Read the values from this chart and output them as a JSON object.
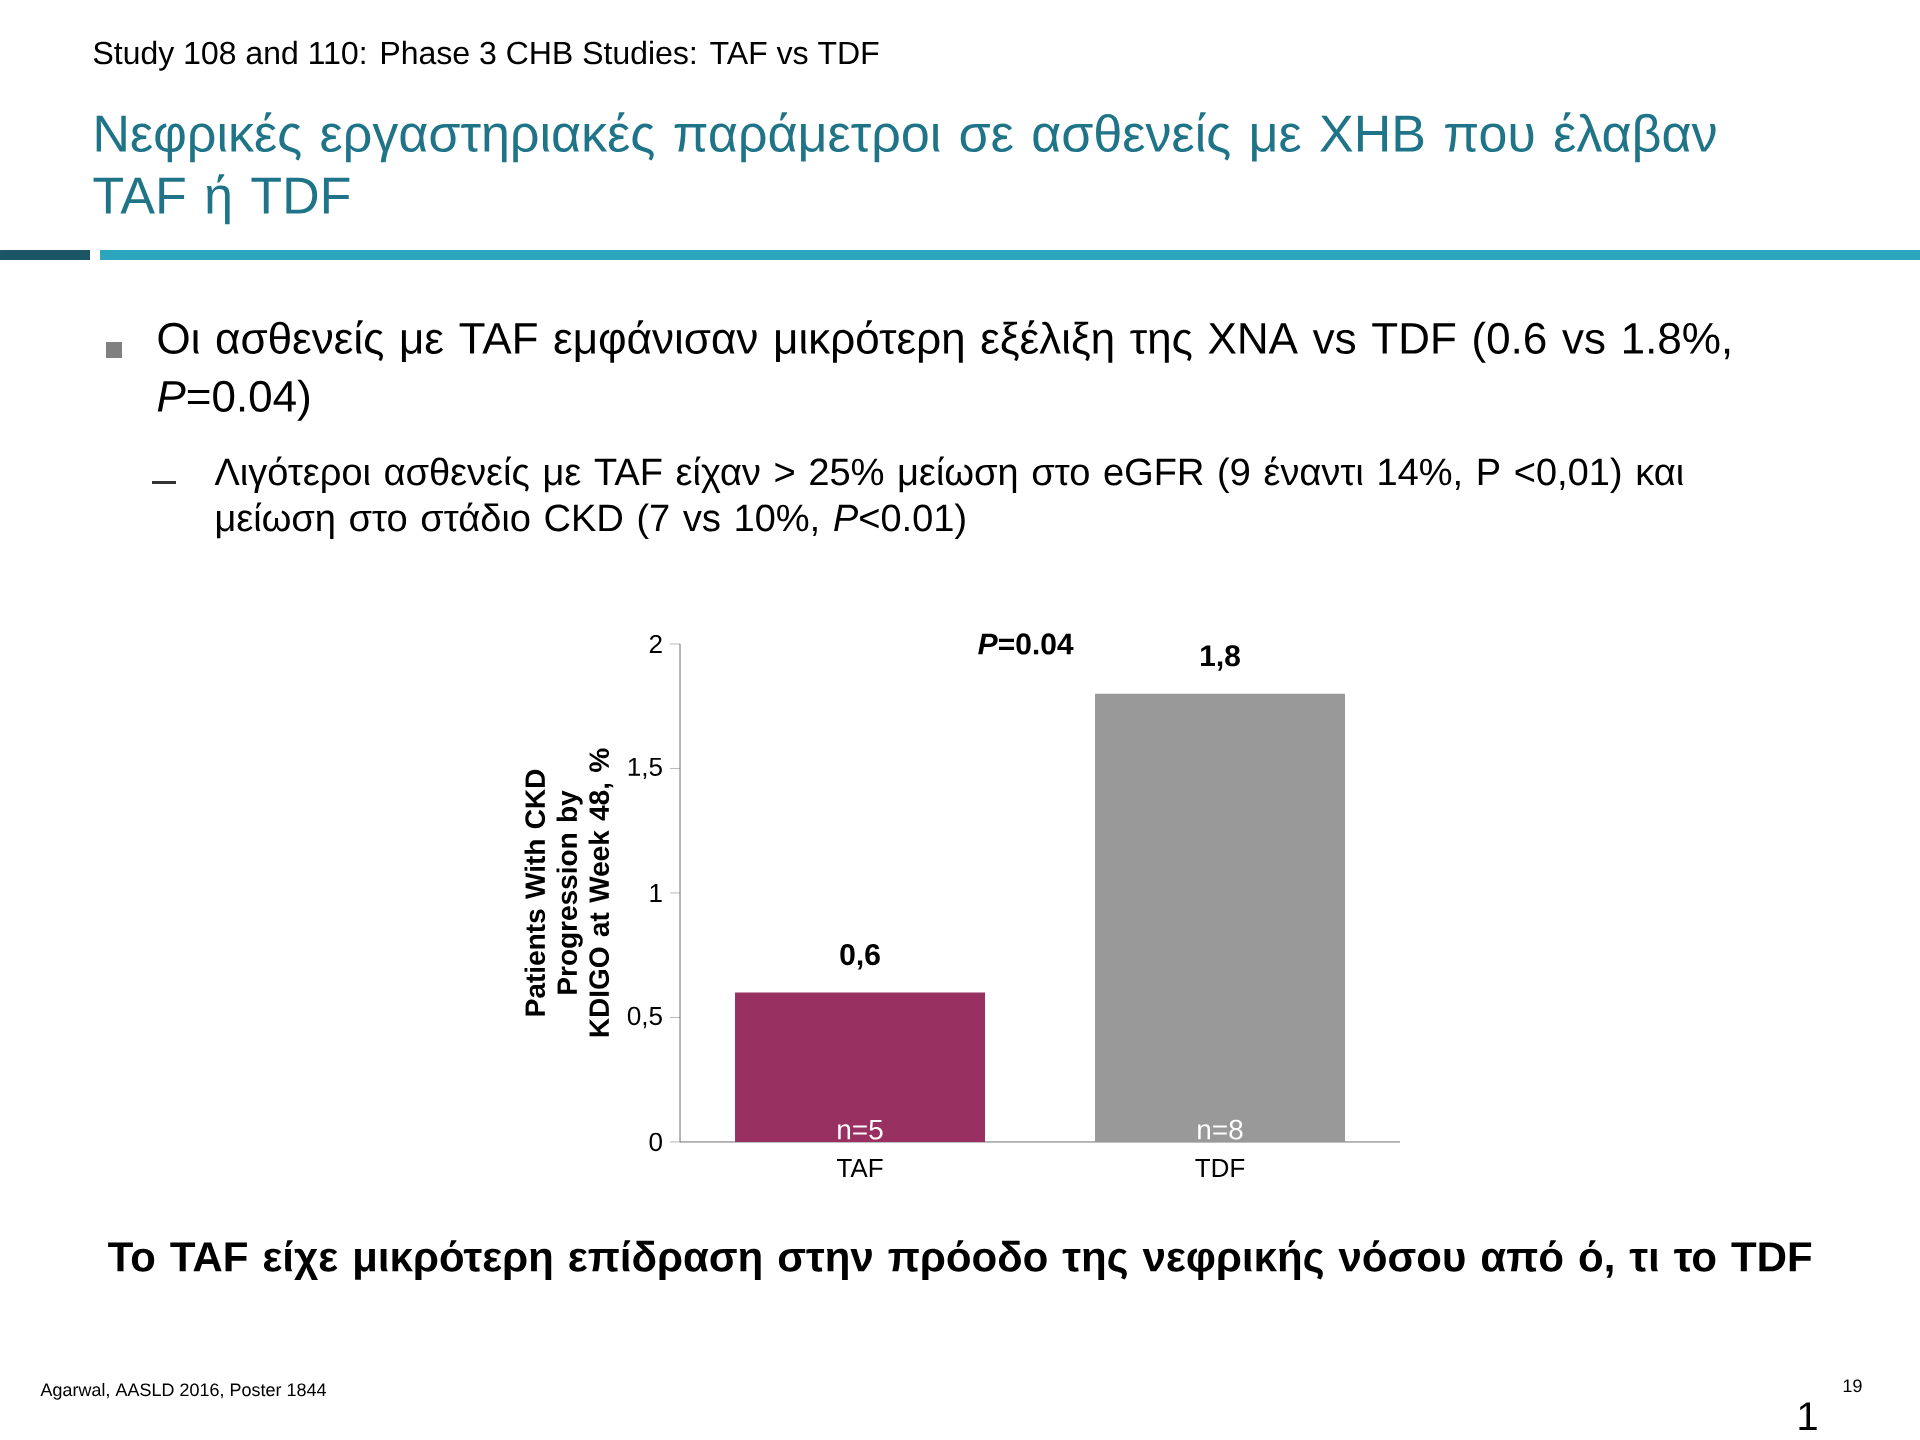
{
  "chart_data": {
    "type": "bar",
    "subtitle": "Study 108 and 110: Phase 3 CHB Studies: TAF vs TDF",
    "title": "Νεφρικές εργαστηριακές παράμετροι σε ασθενείς με ΧΗΒ που έλαβαν TAF ή TDF",
    "ylabel": "Patients With CKD Progression by KDIGO at Week 48, %",
    "categories": [
      "TAF",
      "TDF"
    ],
    "values": [
      0.6,
      1.8
    ],
    "colors": [
      "#993062",
      "#999999"
    ],
    "value_labels": [
      "0,6",
      "1,8"
    ],
    "ylim": [
      0,
      2
    ],
    "yticks": [
      0,
      {
        "value": 0.5,
        "label": "0,5"
      },
      1,
      {
        "value": 1.5,
        "label": "1,5"
      },
      2
    ],
    "annotations": [
      "Οι ασθενείς με TAF εμφάνισαν μικρότερη εξέλιξη της ΧΝΑ vs TDF (0.6 vs 1.8%, *P*=0.04)",
      "Λιγότεροι ασθενείς με TAF είχαν > 25% μείωση στο eGFR (9 έναντι 14%, P <0,01) και μείωση στο στάδιο CKD  (7 vs 10%, *P*<0.01)",
      "**Το TAF είχε μικρότερη επίδραση στην πρόοδο της νεφρικής νόσου από ό, τι το TDF**",
      "Agarwal, AASLD 2016, Poster 1844",
      "1",
      "19",
      "*P*=0.04",
      "n=5",
      "n=8"
    ]
  }
}
